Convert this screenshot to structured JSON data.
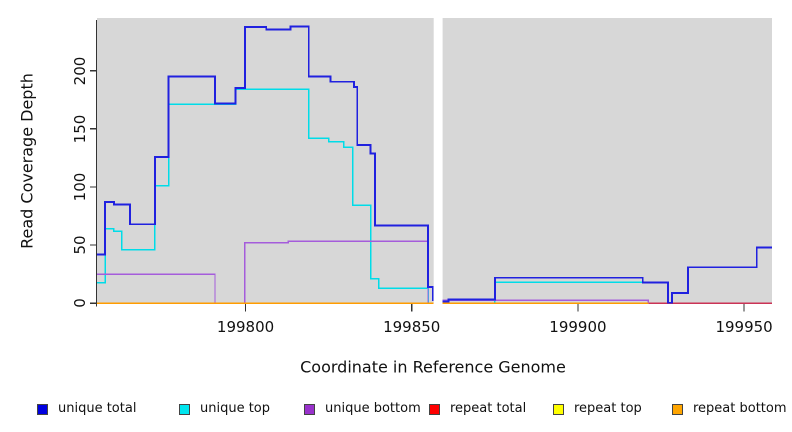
{
  "chart_data": {
    "type": "line",
    "step": true,
    "xlabel": "Coordinate in Reference Genome",
    "ylabel": "Read Coverage Depth",
    "xlim": [
      199755.3,
      199958.4
    ],
    "ylim": [
      0,
      245.3
    ],
    "x_ticks": [
      199800,
      199850,
      199900,
      199950
    ],
    "y_ticks": [
      0,
      50,
      100,
      150,
      200
    ],
    "panel_bg": "#D7D7D7",
    "axis_color": "#333333",
    "gap": {
      "from": 199856.6,
      "to": 199859.3
    },
    "series": [
      {
        "id": "repeat-top",
        "label": "repeat top",
        "color": "#F0F000",
        "width": 1.4,
        "segments": [
          [
            [
              199755.3,
              0
            ],
            [
              199856.6,
              0
            ]
          ],
          [
            [
              199859.3,
              0
            ],
            [
              199958.4,
              0
            ]
          ]
        ]
      },
      {
        "id": "repeat-total",
        "label": "repeat total",
        "color": "#CB3355",
        "width": 1.4,
        "segments": [
          [
            [
              199755.3,
              0
            ],
            [
              199856.6,
              0
            ]
          ],
          [
            [
              199859.3,
              0
            ],
            [
              199958.4,
              0
            ]
          ]
        ]
      },
      {
        "id": "unique-top",
        "label": "unique top",
        "color": "#00DCE8",
        "width": 1.5,
        "segments": [
          [
            [
              199755.3,
              17.5
            ],
            [
              199757.7,
              64
            ],
            [
              199760.4,
              62
            ],
            [
              199762.7,
              46
            ],
            [
              199772.7,
              101
            ],
            [
              199776.8,
              171
            ],
            [
              199797,
              184
            ],
            [
              199819,
              142
            ],
            [
              199825,
              139
            ],
            [
              199829.6,
              134
            ],
            [
              199832.2,
              84.5
            ],
            [
              199837.6,
              21
            ],
            [
              199840,
              13
            ],
            [
              199855,
              0
            ],
            [
              199856.6,
              0
            ]
          ],
          [
            [
              199874.8,
              0
            ],
            [
              199875,
              18
            ],
            [
              199927.1,
              0.5
            ],
            [
              199928.3,
              9
            ],
            [
              199933.1,
              31
            ],
            [
              199953.8,
              48
            ],
            [
              199958.4,
              48
            ]
          ]
        ]
      },
      {
        "id": "unique-bottom",
        "label": "unique bottom",
        "color": "#A55CDB",
        "width": 1.4,
        "segments": [
          [
            [
              199755.3,
              25
            ],
            [
              199790.8,
              0
            ],
            [
              199799.8,
              52
            ],
            [
              199812.9,
              53.5
            ],
            [
              199854.9,
              0
            ],
            [
              199856.6,
              0
            ]
          ],
          [
            [
              199859.3,
              2.5
            ],
            [
              199921.2,
              0
            ]
          ]
        ]
      },
      {
        "id": "repeat-bottom",
        "label": "repeat bottom",
        "color": "#FF9C00",
        "width": 1.6,
        "segments": [
          [
            [
              199755.3,
              0
            ],
            [
              199856.6,
              0
            ]
          ],
          [
            [
              199859.3,
              0
            ],
            [
              199921.2,
              0
            ]
          ]
        ]
      },
      {
        "id": "unique-total",
        "label": "unique total",
        "color": "#2021DF",
        "width": 1.9,
        "segments": [
          [
            [
              199755.3,
              42
            ],
            [
              199757.7,
              87
            ],
            [
              199760.4,
              85
            ],
            [
              199765.2,
              68
            ],
            [
              199772.7,
              126
            ],
            [
              199776.8,
              195
            ],
            [
              199790.8,
              172
            ],
            [
              199797,
              185
            ],
            [
              199799.8,
              237.5
            ],
            [
              199806.2,
              235.5
            ],
            [
              199813.5,
              238
            ],
            [
              199819,
              194.9
            ],
            [
              199825.6,
              190.5
            ],
            [
              199832.6,
              186
            ],
            [
              199833.6,
              136
            ],
            [
              199837.6,
              129
            ],
            [
              199838.9,
              67
            ],
            [
              199854.9,
              14
            ],
            [
              199856.3,
              2.8
            ],
            [
              199856.6,
              2.8
            ]
          ],
          [
            [
              199859.3,
              1.5
            ],
            [
              199861,
              3.2
            ],
            [
              199875,
              22
            ],
            [
              199919.5,
              18
            ],
            [
              199927.1,
              0.5
            ],
            [
              199928.3,
              9
            ],
            [
              199933.1,
              31
            ],
            [
              199953.8,
              48
            ],
            [
              199958.4,
              48
            ]
          ]
        ]
      }
    ],
    "legend": [
      {
        "label": "unique total",
        "color": "#0000E0"
      },
      {
        "label": "unique top",
        "color": "#00E5EE"
      },
      {
        "label": "unique bottom",
        "color": "#9932CC"
      },
      {
        "label": "repeat total",
        "color": "#FF0000"
      },
      {
        "label": "repeat top",
        "color": "#FFFF00"
      },
      {
        "label": "repeat bottom",
        "color": "#FFA500"
      }
    ]
  }
}
